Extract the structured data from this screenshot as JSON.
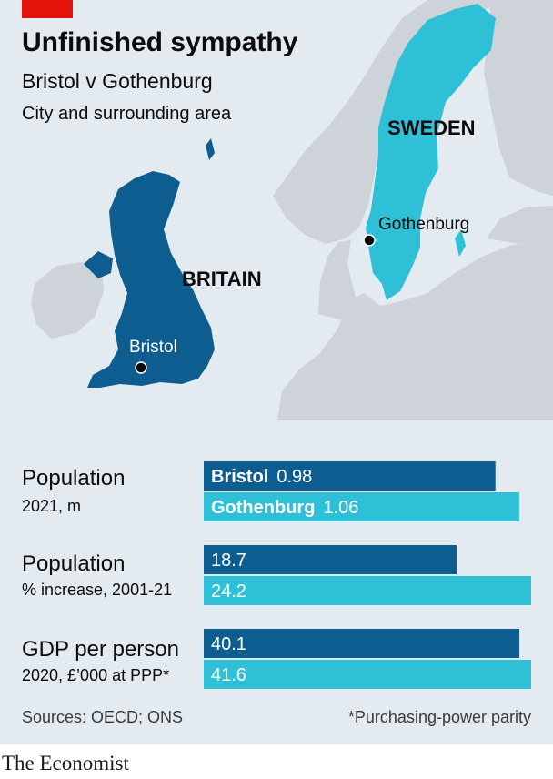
{
  "title": "Unfinished sympathy",
  "subtitle": "Bristol v Gothenburg",
  "subtitle2": "City and surrounding area",
  "map": {
    "countries": {
      "britain": "BRITAIN",
      "sweden": "SWEDEN"
    },
    "cities": {
      "bristol": "Bristol",
      "gothenburg": "Gothenburg"
    }
  },
  "colors": {
    "bristol": "#0d5d90",
    "gothenburg": "#2ec0d6",
    "background": "#e3ebf1",
    "accent": "#e3120b"
  },
  "chart_data": {
    "type": "bar",
    "orientation": "horizontal",
    "series": [
      {
        "name": "Bristol",
        "values": [
          0.98,
          18.7,
          40.1
        ]
      },
      {
        "name": "Gothenburg",
        "values": [
          1.06,
          24.2,
          41.6
        ]
      }
    ],
    "panels": [
      {
        "label": "Population",
        "sublabel": "2021, m",
        "values": [
          0.98,
          1.06
        ],
        "value_labels": [
          "0.98",
          "1.06"
        ],
        "xlim": [
          0,
          1.1
        ]
      },
      {
        "label": "Population",
        "sublabel": "% increase, 2001-21",
        "values": [
          18.7,
          24.2
        ],
        "value_labels": [
          "18.7",
          "24.2"
        ],
        "xlim": [
          0,
          24.2
        ]
      },
      {
        "label": "GDP per person",
        "sublabel": "2020, £’000 at PPP*",
        "values": [
          40.1,
          41.6
        ],
        "value_labels": [
          "40.1",
          "41.6"
        ],
        "xlim": [
          0,
          41.6
        ]
      }
    ]
  },
  "footer": {
    "sources": "Sources: OECD; ONS",
    "note": "*Purchasing-power parity"
  },
  "logo": "The Economist"
}
